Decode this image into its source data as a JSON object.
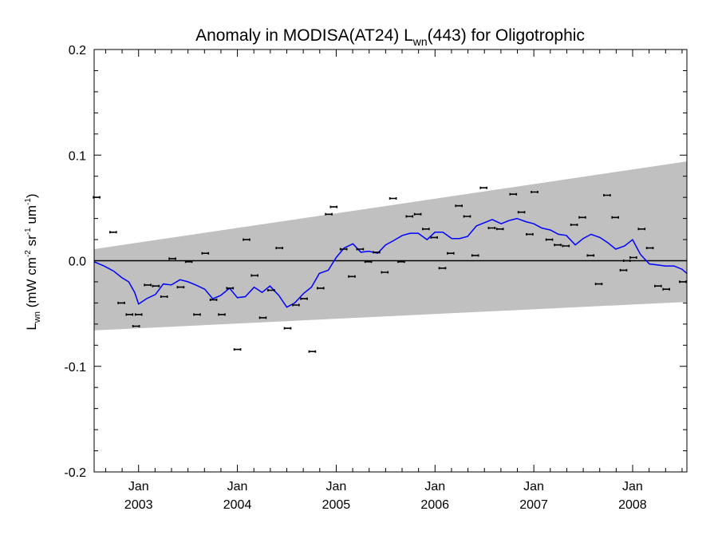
{
  "chart_data": {
    "type": "scatter",
    "title": {
      "prefix": "Anomaly in MODISA(AT24) L",
      "sub": "wn",
      "suffix": "(443) for Oligotrophic"
    },
    "ylabel": {
      "main": "L",
      "sub": "wn",
      "units_open": " (mW cm",
      "exp1": "-2",
      "sr": " sr",
      "exp2": "-1",
      "um": " um",
      "exp3": "-1",
      "units_close": ")"
    },
    "xlim": [
      2002.55,
      2008.55
    ],
    "ylim": [
      -0.2,
      0.2
    ],
    "y_ticks": [
      {
        "value": -0.2,
        "label": "-0.2"
      },
      {
        "value": -0.1,
        "label": "-0.1"
      },
      {
        "value": 0.0,
        "label": "0.0"
      },
      {
        "value": 0.1,
        "label": "0.1"
      },
      {
        "value": 0.2,
        "label": "0.2"
      }
    ],
    "y_minor_step": 0.02,
    "x_ticks": [
      {
        "value": 2003.0,
        "month": "Jan",
        "year": "2003"
      },
      {
        "value": 2004.0,
        "month": "Jan",
        "year": "2004"
      },
      {
        "value": 2005.0,
        "month": "Jan",
        "year": "2005"
      },
      {
        "value": 2006.0,
        "month": "Jan",
        "year": "2006"
      },
      {
        "value": 2007.0,
        "month": "Jan",
        "year": "2007"
      },
      {
        "value": 2008.0,
        "month": "Jan",
        "year": "2008"
      }
    ],
    "x_minor_step": 0.1667,
    "band": {
      "start": [
        2002.55,
        -0.066,
        0.011
      ],
      "end": [
        2008.55,
        -0.039,
        0.094
      ],
      "color": "#c0c0c0"
    },
    "zero_line": 0.0,
    "points": [
      [
        2002.575,
        0.06
      ],
      [
        2002.742,
        0.027
      ],
      [
        2002.825,
        -0.04
      ],
      [
        2002.908,
        -0.051
      ],
      [
        2002.975,
        -0.062
      ],
      [
        2003.0,
        -0.051
      ],
      [
        2003.092,
        -0.023
      ],
      [
        2003.175,
        -0.024
      ],
      [
        2003.258,
        -0.034
      ],
      [
        2003.342,
        0.002
      ],
      [
        2003.425,
        -0.025
      ],
      [
        2003.508,
        -0.001
      ],
      [
        2003.592,
        -0.051
      ],
      [
        2003.675,
        0.007
      ],
      [
        2003.758,
        -0.037
      ],
      [
        2003.842,
        -0.051
      ],
      [
        2003.925,
        -0.026
      ],
      [
        2004.0,
        -0.084
      ],
      [
        2004.092,
        0.02
      ],
      [
        2004.175,
        -0.014
      ],
      [
        2004.258,
        -0.054
      ],
      [
        2004.342,
        -0.028
      ],
      [
        2004.425,
        0.012
      ],
      [
        2004.508,
        -0.064
      ],
      [
        2004.592,
        -0.042
      ],
      [
        2004.675,
        -0.036
      ],
      [
        2004.758,
        -0.086
      ],
      [
        2004.842,
        -0.026
      ],
      [
        2004.925,
        0.044
      ],
      [
        2004.975,
        0.051
      ],
      [
        2005.075,
        0.011
      ],
      [
        2005.158,
        -0.015
      ],
      [
        2005.242,
        0.011
      ],
      [
        2005.325,
        -0.001
      ],
      [
        2005.408,
        0.008
      ],
      [
        2005.492,
        -0.011
      ],
      [
        2005.575,
        0.059
      ],
      [
        2005.658,
        -0.001
      ],
      [
        2005.742,
        0.042
      ],
      [
        2005.825,
        0.044
      ],
      [
        2005.908,
        0.03
      ],
      [
        2005.992,
        0.022
      ],
      [
        2006.075,
        -0.007
      ],
      [
        2006.158,
        0.007
      ],
      [
        2006.242,
        0.052
      ],
      [
        2006.325,
        0.042
      ],
      [
        2006.408,
        0.005
      ],
      [
        2006.492,
        0.069
      ],
      [
        2006.575,
        0.031
      ],
      [
        2006.658,
        0.03
      ],
      [
        2006.792,
        0.063
      ],
      [
        2006.875,
        0.046
      ],
      [
        2006.958,
        0.025
      ],
      [
        2007.008,
        0.065
      ],
      [
        2007.158,
        0.02
      ],
      [
        2007.242,
        0.015
      ],
      [
        2007.325,
        0.014
      ],
      [
        2007.408,
        0.034
      ],
      [
        2007.492,
        0.041
      ],
      [
        2007.575,
        0.005
      ],
      [
        2007.658,
        -0.022
      ],
      [
        2007.742,
        0.062
      ],
      [
        2007.825,
        0.041
      ],
      [
        2007.908,
        -0.009
      ],
      [
        2007.942,
        0.0
      ],
      [
        2008.008,
        0.003
      ],
      [
        2008.092,
        0.03
      ],
      [
        2008.175,
        0.012
      ],
      [
        2008.258,
        -0.024
      ],
      [
        2008.342,
        -0.027
      ],
      [
        2008.508,
        -0.02
      ]
    ],
    "point_color": "#000000",
    "smooth_line": {
      "color": "#0000ff",
      "x": [
        2002.55,
        2002.65,
        2002.75,
        2002.83,
        2002.9,
        2002.96,
        2003.0,
        2003.08,
        2003.17,
        2003.25,
        2003.33,
        2003.42,
        2003.5,
        2003.58,
        2003.67,
        2003.75,
        2003.83,
        2003.92,
        2004.0,
        2004.08,
        2004.17,
        2004.25,
        2004.33,
        2004.42,
        2004.5,
        2004.58,
        2004.67,
        2004.75,
        2004.83,
        2004.92,
        2005.0,
        2005.08,
        2005.17,
        2005.25,
        2005.33,
        2005.42,
        2005.5,
        2005.58,
        2005.67,
        2005.75,
        2005.83,
        2005.92,
        2006.0,
        2006.08,
        2006.17,
        2006.25,
        2006.33,
        2006.42,
        2006.5,
        2006.58,
        2006.67,
        2006.75,
        2006.83,
        2006.92,
        2007.0,
        2007.08,
        2007.17,
        2007.25,
        2007.33,
        2007.42,
        2007.5,
        2007.58,
        2007.67,
        2007.75,
        2007.83,
        2007.92,
        2008.0,
        2008.08,
        2008.17,
        2008.25,
        2008.33,
        2008.42,
        2008.5,
        2008.55
      ],
      "y": [
        -0.001,
        -0.005,
        -0.01,
        -0.016,
        -0.02,
        -0.03,
        -0.041,
        -0.036,
        -0.032,
        -0.022,
        -0.023,
        -0.018,
        -0.02,
        -0.023,
        -0.027,
        -0.036,
        -0.033,
        -0.026,
        -0.035,
        -0.034,
        -0.025,
        -0.03,
        -0.024,
        -0.033,
        -0.044,
        -0.04,
        -0.031,
        -0.025,
        -0.012,
        -0.009,
        0.003,
        0.012,
        0.016,
        0.008,
        0.009,
        0.007,
        0.015,
        0.019,
        0.024,
        0.026,
        0.026,
        0.02,
        0.027,
        0.027,
        0.021,
        0.021,
        0.023,
        0.033,
        0.036,
        0.039,
        0.035,
        0.038,
        0.04,
        0.037,
        0.035,
        0.031,
        0.029,
        0.025,
        0.024,
        0.015,
        0.021,
        0.025,
        0.022,
        0.017,
        0.011,
        0.014,
        0.02,
        0.006,
        -0.003,
        -0.004,
        -0.005,
        -0.005,
        -0.008,
        -0.012
      ]
    },
    "grid": false,
    "legend": "none"
  }
}
